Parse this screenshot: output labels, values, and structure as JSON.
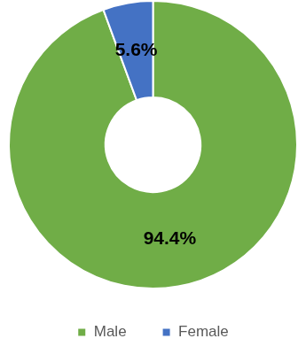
{
  "chart_data": {
    "type": "doughnut",
    "categories": [
      "Male",
      "Female"
    ],
    "values": [
      94.4,
      5.6
    ],
    "value_labels": [
      "94.4%",
      "5.6%"
    ],
    "colors": [
      "#70ad47",
      "#4472c4"
    ],
    "data_labels": true,
    "legend": "bottom"
  }
}
